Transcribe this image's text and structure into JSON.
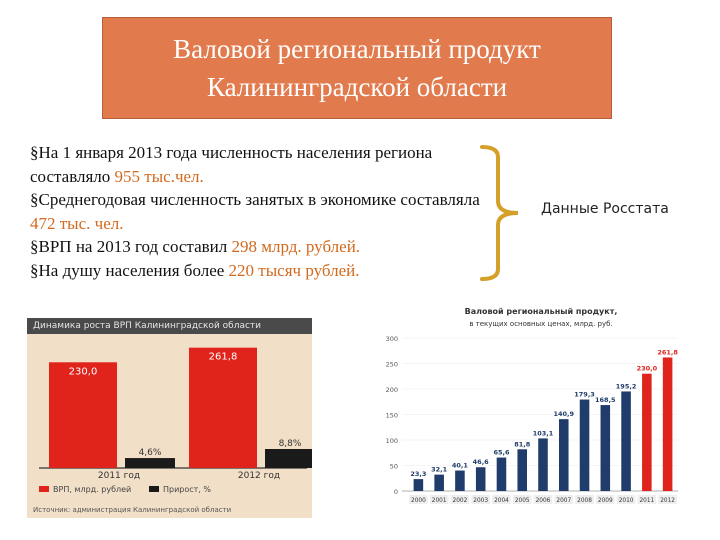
{
  "title": {
    "line1": "Валовой региональный продукт",
    "line2": "Калининградской области"
  },
  "bullets": [
    {
      "marker": "§",
      "text": "На 1 января 2013 года численность населения региона составляло ",
      "highlight": "955 тыс.чел."
    },
    {
      "marker": "§",
      "text": "Среднегодовая численность занятых в экономике составляла ",
      "highlight": "472 тыс. чел."
    },
    {
      "marker": "§",
      "text": "ВРП на 2013 год составил ",
      "highlight": "298 млрд. рублей."
    },
    {
      "marker": "§",
      "text": "На душу населения более ",
      "highlight": "220 тысяч рублей."
    }
  ],
  "source_note": "Данные Росстата",
  "colors": {
    "title_bg": "#e17a4d",
    "highlight": "#d2691e",
    "brace": "#d4a02a",
    "bar_red": "#e0231b",
    "bar_blue": "#1f3c6b",
    "bar_dark": "#1a1a1a",
    "panel_bg": "#f1dfc8"
  },
  "chart_data": [
    {
      "type": "bar",
      "title": "Динамика роста ВРП Калининградской области",
      "categories": [
        "2011 год",
        "2012 год"
      ],
      "series": [
        {
          "name": "ВРП, млрд. рублей",
          "values": [
            230.0,
            261.8
          ],
          "labels": [
            "230,0",
            "261,8"
          ],
          "color": "#e0231b"
        },
        {
          "name": "Прирост, %",
          "values": [
            4.6,
            8.8
          ],
          "labels": [
            "4,6%",
            "8,8%"
          ],
          "color": "#1a1a1a"
        }
      ],
      "legend_position": "bottom",
      "footer": "Источник: администрация Калининградской области"
    },
    {
      "type": "bar",
      "title_line1": "Валовой региональный продукт,",
      "title_line2": "в текущих основных ценах, млрд. руб.",
      "categories": [
        "2000",
        "2001",
        "2002",
        "2003",
        "2004",
        "2005",
        "2006",
        "2007",
        "2008",
        "2009",
        "2010",
        "2011",
        "2012"
      ],
      "values": [
        23.3,
        32.1,
        40.1,
        46.6,
        65.6,
        81.8,
        103.1,
        140.9,
        179.3,
        168.5,
        195.2,
        230.0,
        261.8
      ],
      "labels": [
        "23,3",
        "32,1",
        "40,1",
        "46,6",
        "65,6",
        "81,8",
        "103,1",
        "140,9",
        "179,3",
        "168,5",
        "195,2",
        "230,0",
        "261,8"
      ],
      "colors": [
        "#1f3c6b",
        "#1f3c6b",
        "#1f3c6b",
        "#1f3c6b",
        "#1f3c6b",
        "#1f3c6b",
        "#1f3c6b",
        "#1f3c6b",
        "#1f3c6b",
        "#1f3c6b",
        "#1f3c6b",
        "#e0231b",
        "#e0231b"
      ],
      "label_colors": [
        "#1f3c6b",
        "#1f3c6b",
        "#1f3c6b",
        "#1f3c6b",
        "#1f3c6b",
        "#1f3c6b",
        "#1f3c6b",
        "#1f3c6b",
        "#1f3c6b",
        "#1f3c6b",
        "#1f3c6b",
        "#e0231b",
        "#e0231b"
      ],
      "yticks": [
        0,
        50,
        100,
        150,
        200,
        250,
        300
      ],
      "ylim": [
        0,
        300
      ]
    }
  ]
}
